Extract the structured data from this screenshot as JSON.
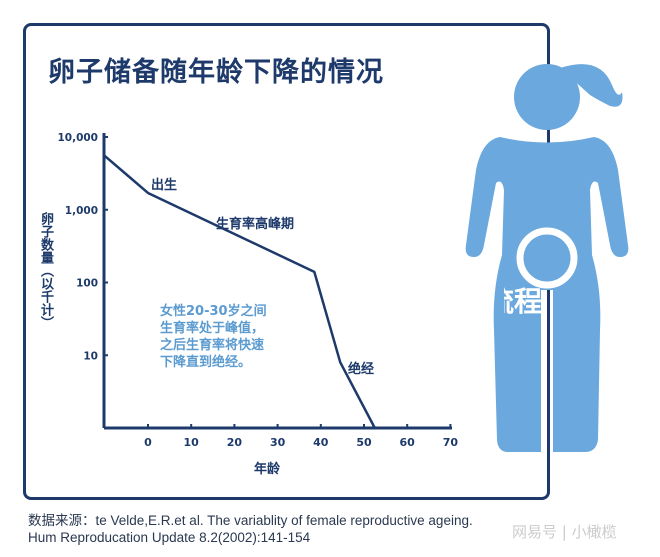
{
  "title": "卵子储备随年龄下降的情况",
  "chart_data": {
    "type": "line",
    "title": "卵子储备随年龄下降的情况",
    "xlabel": "年龄",
    "ylabel": "卵子数量（以千计）",
    "y_scale": "log",
    "ylim": [
      1,
      10000
    ],
    "xlim": [
      -10,
      70
    ],
    "x_ticks": [
      "0",
      "10",
      "20",
      "30",
      "40",
      "50",
      "60",
      "70"
    ],
    "y_ticks": [
      {
        "value": 10000,
        "label": "10,000"
      },
      {
        "value": 1000,
        "label": "1,000"
      },
      {
        "value": 100,
        "label": "100"
      },
      {
        "value": 10,
        "label": "10"
      }
    ],
    "grid": false,
    "series": [
      {
        "x": [
          -10,
          0,
          38.5,
          44.5,
          52.5
        ],
        "y": [
          5500,
          1700,
          140,
          8,
          1
        ]
      }
    ],
    "annotations": [
      "出生",
      "生育率高峰期",
      "绝经"
    ],
    "line_color": "#1d3a6b"
  },
  "note_lines": [
    "女性20-30岁之间",
    "生育率处于峰值，",
    "之后生育率将快速",
    "下降直到绝经。"
  ],
  "source_lines": [
    "数据来源：te Velde,E.R.et al. The variablity of female reproductive ageing.",
    "Hum Reproducation Update 8.2(2002):141-154"
  ],
  "watermark": "网易号 | 小橄榄",
  "overlay_text": "流程",
  "figure_color": "#6aa8de"
}
